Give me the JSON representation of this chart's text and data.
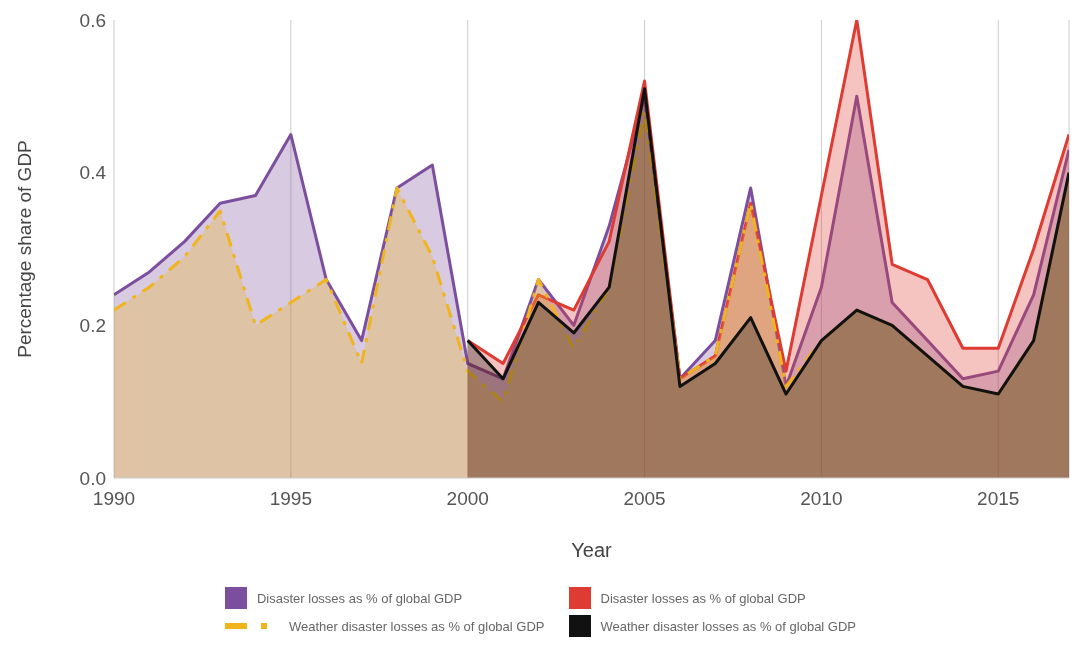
{
  "chart_data": {
    "type": "area",
    "xlabel": "Year",
    "ylabel": "Percentage share of GDP",
    "x": [
      1990,
      1991,
      1992,
      1993,
      1994,
      1995,
      1996,
      1997,
      1998,
      1999,
      2000,
      2001,
      2002,
      2003,
      2004,
      2005,
      2006,
      2007,
      2008,
      2009,
      2010,
      2011,
      2012,
      2013,
      2014,
      2015,
      2016,
      2017
    ],
    "series": [
      {
        "name": "Disaster losses as % of global GDP",
        "color": "#7b4f9d",
        "line_style": "solid",
        "values": [
          0.24,
          0.27,
          0.31,
          0.36,
          0.37,
          0.45,
          0.26,
          0.18,
          0.38,
          0.41,
          0.15,
          0.13,
          0.26,
          0.2,
          0.33,
          0.5,
          0.13,
          0.18,
          0.38,
          0.12,
          0.25,
          0.5,
          0.23,
          0.18,
          0.13,
          0.14,
          0.24,
          0.43
        ]
      },
      {
        "name": "Disaster losses as % of global GDP",
        "color": "#de3b32",
        "line_style": "solid",
        "values": [
          null,
          null,
          null,
          null,
          null,
          null,
          null,
          null,
          null,
          null,
          0.18,
          0.15,
          0.24,
          0.22,
          0.31,
          0.52,
          0.13,
          0.16,
          0.36,
          0.14,
          0.37,
          0.6,
          0.28,
          0.26,
          0.17,
          0.17,
          0.3,
          0.45
        ]
      },
      {
        "name": "Weather disaster losses as % of global GDP",
        "color": "#f0b41c",
        "line_style": "dashed",
        "values": [
          0.22,
          0.25,
          0.29,
          0.35,
          0.2,
          0.23,
          0.26,
          0.15,
          0.38,
          0.29,
          0.14,
          0.1,
          0.26,
          0.17,
          0.25,
          0.48,
          0.13,
          0.16,
          0.36,
          0.12,
          0.18,
          0.22,
          0.2,
          0.16,
          0.12,
          0.11,
          0.18,
          0.4
        ]
      },
      {
        "name": "Weather disaster losses as % of global GDP",
        "color": "#111111",
        "line_style": "solid",
        "values": [
          null,
          null,
          null,
          null,
          null,
          null,
          null,
          null,
          null,
          null,
          0.18,
          0.13,
          0.23,
          0.19,
          0.25,
          0.51,
          0.12,
          0.15,
          0.21,
          0.11,
          0.18,
          0.22,
          0.2,
          0.16,
          0.12,
          0.11,
          0.18,
          0.4
        ]
      }
    ],
    "xlim": [
      1990,
      2017
    ],
    "xticks": [
      1990,
      1995,
      2000,
      2005,
      2010,
      2015
    ],
    "ylim": [
      0,
      0.6
    ],
    "yticks": [
      {
        "value": 0,
        "label": "0.0"
      },
      {
        "value": 0.2,
        "label": "0.2"
      },
      {
        "value": 0.4,
        "label": "0.4"
      },
      {
        "value": 0.6,
        "label": "0.6"
      }
    ],
    "grid": "x",
    "legend": "bottom"
  }
}
